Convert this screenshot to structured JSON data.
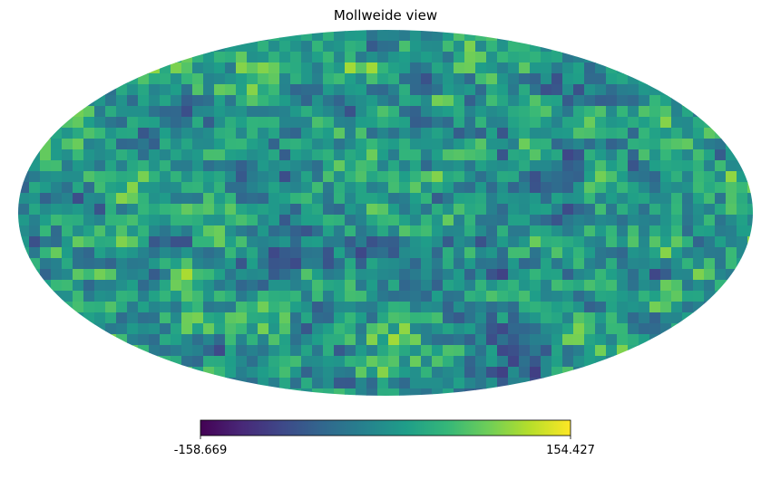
{
  "chart_data": {
    "type": "heatmap",
    "projection": "mollweide",
    "title": "Mollweide view",
    "colormap": "viridis",
    "grid": false,
    "colorbar": {
      "orientation": "horizontal",
      "placement": "bottom",
      "min": -158.669,
      "max": 154.427,
      "min_label": "-158.669",
      "max_label": "154.427"
    },
    "colormap_stops": [
      "#440154",
      "#482878",
      "#3e4989",
      "#31688e",
      "#26828e",
      "#1f9e89",
      "#35b779",
      "#6ece58",
      "#b5de2b",
      "#fde725"
    ]
  }
}
